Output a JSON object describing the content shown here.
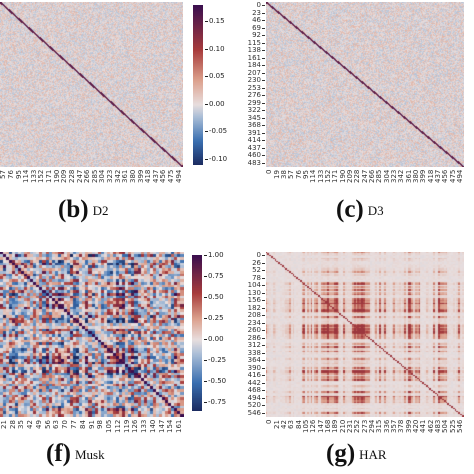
{
  "chart_data": [
    {
      "type": "heatmap",
      "panel": "b",
      "caption_letter": "(b)",
      "caption_name": "D2",
      "x_tick_labels": [
        "57",
        "76",
        "95",
        "114",
        "133",
        "152",
        "171",
        "190",
        "209",
        "228",
        "247",
        "266",
        "285",
        "304",
        "323",
        "342",
        "361",
        "380",
        "399",
        "418",
        "437",
        "456",
        "475",
        "494"
      ],
      "y_tick_labels": [],
      "colorbar_ticks": [
        "0.15",
        "0.10",
        "0.05",
        "0.00",
        "-0.05",
        "-0.10"
      ],
      "colorbar_range": [
        -0.11,
        0.18
      ],
      "colormap": "twilight_shifted",
      "diagonal": "strong positive",
      "off_diagonal": "near zero noise"
    },
    {
      "type": "heatmap",
      "panel": "c",
      "caption_letter": "(c)",
      "caption_name": "D3",
      "x_tick_labels": [
        "0",
        "19",
        "38",
        "57",
        "76",
        "95",
        "114",
        "133",
        "152",
        "171",
        "190",
        "209",
        "228",
        "247",
        "266",
        "285",
        "304",
        "323",
        "342",
        "361",
        "380",
        "399",
        "418",
        "437",
        "456",
        "475",
        "494"
      ],
      "y_tick_labels": [
        "0",
        "23",
        "46",
        "69",
        "92",
        "115",
        "138",
        "161",
        "184",
        "207",
        "230",
        "253",
        "276",
        "299",
        "322",
        "345",
        "368",
        "391",
        "414",
        "437",
        "460",
        "483"
      ],
      "diagonal": "strong positive",
      "off_diagonal": "near zero noise"
    },
    {
      "type": "heatmap",
      "panel": "f",
      "caption_letter": "(f)",
      "caption_name": "Musk",
      "x_tick_labels": [
        "21",
        "28",
        "35",
        "42",
        "49",
        "56",
        "63",
        "70",
        "77",
        "84",
        "91",
        "98",
        "105",
        "112",
        "119",
        "126",
        "133",
        "140",
        "147",
        "154",
        "161"
      ],
      "y_tick_labels": [],
      "colorbar_ticks": [
        "1.00",
        "0.75",
        "0.50",
        "0.25",
        "0.00",
        "-0.25",
        "-0.50",
        "-0.75"
      ],
      "colorbar_range": [
        -0.85,
        1.0
      ],
      "colormap": "twilight_shifted",
      "diagonal": "strong positive",
      "off_diagonal": "strong mixed correlations"
    },
    {
      "type": "heatmap",
      "panel": "g",
      "caption_letter": "(g)",
      "caption_name": "HAR",
      "x_tick_labels": [
        "0",
        "21",
        "42",
        "63",
        "84",
        "105",
        "126",
        "147",
        "168",
        "189",
        "210",
        "231",
        "252",
        "273",
        "294",
        "315",
        "336",
        "357",
        "378",
        "399",
        "420",
        "441",
        "462",
        "483",
        "504",
        "525",
        "546"
      ],
      "y_tick_labels": [
        "0",
        "26",
        "52",
        "78",
        "104",
        "130",
        "156",
        "182",
        "208",
        "234",
        "260",
        "286",
        "312",
        "338",
        "364",
        "390",
        "416",
        "442",
        "468",
        "494",
        "520",
        "546"
      ],
      "diagonal": "positive",
      "off_diagonal": "banded positive structure"
    }
  ],
  "colors": {
    "positive_strong": "#3b0f4f",
    "positive": "#a83c3c",
    "neutral": "#e6dcdc",
    "negative": "#3a6fb0",
    "negative_strong": "#1b2a5e"
  }
}
